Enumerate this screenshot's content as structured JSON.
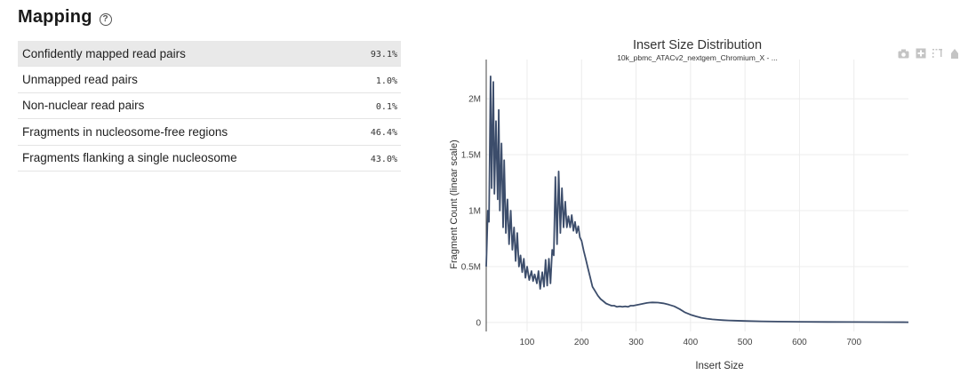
{
  "section": {
    "title": "Mapping",
    "help_icon": "question-circle-icon"
  },
  "metrics": [
    {
      "label": "Confidently mapped read pairs",
      "value": "93.1%"
    },
    {
      "label": "Unmapped read pairs",
      "value": "1.0%"
    },
    {
      "label": "Non-nuclear read pairs",
      "value": "0.1%"
    },
    {
      "label": "Fragments in nucleosome-free regions",
      "value": "46.4%"
    },
    {
      "label": "Fragments flanking a single nucleosome",
      "value": "43.0%"
    }
  ],
  "modebar": {
    "icons": [
      "camera-icon",
      "plus-box-icon",
      "zoom-select-icon",
      "home-icon"
    ]
  },
  "colors": {
    "line": "#3c4d6b",
    "grid": "#ececec",
    "highlight_row": "#e9e9e9"
  },
  "chart_data": {
    "type": "line",
    "title": "Insert Size Distribution",
    "subtitle": "10k_pbmc_ATACv2_nextgem_Chromium_X - ...",
    "xlabel": "Insert Size",
    "ylabel": "Fragment Count (linear scale)",
    "xlim": [
      25,
      800
    ],
    "ylim": [
      -80000,
      2350000
    ],
    "x_ticks": [
      100,
      200,
      300,
      400,
      500,
      600,
      700
    ],
    "y_ticks": [
      0,
      500000,
      1000000,
      1500000,
      2000000
    ],
    "y_tick_labels": [
      "0",
      "0.5M",
      "1M",
      "1.5M",
      "2M"
    ],
    "grid": true,
    "series": [
      {
        "name": "",
        "x": [
          25,
          28,
          30,
          33,
          35,
          38,
          40,
          43,
          46,
          48,
          50,
          53,
          56,
          58,
          61,
          64,
          67,
          70,
          73,
          76,
          79,
          82,
          85,
          88,
          91,
          94,
          97,
          100,
          104,
          108,
          111,
          114,
          118,
          121,
          124,
          128,
          131,
          134,
          137,
          140,
          143,
          146,
          149,
          152,
          155,
          158,
          161,
          164,
          167,
          170,
          173,
          176,
          179,
          182,
          185,
          188,
          191,
          194,
          197,
          200,
          204,
          208,
          212,
          216,
          220,
          225,
          230,
          235,
          240,
          245,
          250,
          255,
          260,
          265,
          270,
          275,
          280,
          285,
          290,
          295,
          300,
          305,
          310,
          315,
          320,
          325,
          330,
          340,
          350,
          360,
          370,
          380,
          390,
          400,
          410,
          420,
          430,
          440,
          450,
          460,
          470,
          480,
          500,
          530,
          560,
          600,
          650,
          700,
          750,
          800
        ],
        "y": [
          500000,
          1000000,
          900000,
          2200000,
          1200000,
          2150000,
          1150000,
          1800000,
          1100000,
          1900000,
          1000000,
          1600000,
          850000,
          1450000,
          800000,
          1100000,
          700000,
          1000000,
          650000,
          850000,
          550000,
          800000,
          500000,
          600000,
          450000,
          570000,
          400000,
          500000,
          380000,
          460000,
          370000,
          430000,
          350000,
          460000,
          300000,
          450000,
          320000,
          560000,
          330000,
          570000,
          350000,
          650000,
          600000,
          1300000,
          700000,
          1350000,
          800000,
          1200000,
          850000,
          1080000,
          850000,
          950000,
          850000,
          960000,
          820000,
          900000,
          800000,
          860000,
          760000,
          730000,
          640000,
          560000,
          480000,
          400000,
          320000,
          280000,
          240000,
          210000,
          190000,
          170000,
          160000,
          150000,
          150000,
          140000,
          145000,
          140000,
          145000,
          140000,
          150000,
          150000,
          155000,
          160000,
          165000,
          170000,
          175000,
          178000,
          180000,
          178000,
          172000,
          160000,
          145000,
          120000,
          90000,
          70000,
          55000,
          42000,
          34000,
          28000,
          24000,
          21000,
          18500,
          16500,
          13500,
          10500,
          8500,
          6500,
          5000,
          4000,
          3200,
          2500
        ]
      }
    ]
  }
}
